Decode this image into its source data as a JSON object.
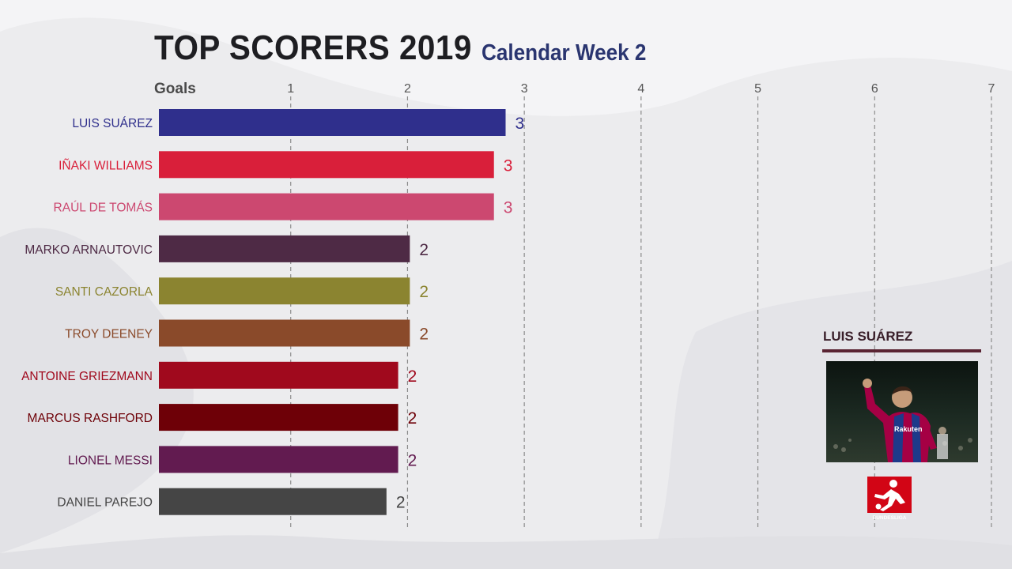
{
  "header": {
    "title": "TOP SCORERS 2019",
    "subtitle": "Calendar Week 2"
  },
  "chart_data": {
    "type": "bar",
    "orientation": "horizontal",
    "title": "TOP SCORERS 2019",
    "subtitle": "Calendar Week 2",
    "xlabel": "Goals",
    "xlim": [
      0,
      7
    ],
    "xticks": [
      1,
      2,
      3,
      4,
      5,
      6,
      7
    ],
    "grid": true,
    "categories": [
      "LUIS SUÁREZ",
      "IÑAKI WILLIAMS",
      "RAÚL DE TOMÁS",
      "MARKO ARNAUTOVIC",
      "SANTI CAZORLA",
      "TROY DEENEY",
      "ANTOINE GRIEZMANN",
      "MARCUS RASHFORD",
      "LIONEL MESSI",
      "DANIEL PAREJO"
    ],
    "values": [
      2.84,
      2.74,
      2.74,
      2.02,
      2.02,
      2.02,
      1.92,
      1.92,
      1.92,
      1.82
    ],
    "value_labels": [
      "3",
      "3",
      "3",
      "2",
      "2",
      "2",
      "2",
      "2",
      "2",
      "2"
    ],
    "colors": [
      "#2f2f8c",
      "#d91f3a",
      "#cc4870",
      "#4e2a45",
      "#8b8430",
      "#8a4a2a",
      "#a0091d",
      "#6e0007",
      "#621b50",
      "#454545"
    ],
    "label_colors": [
      "#2f2f8c",
      "#d91f3a",
      "#cc4870",
      "#4e2a45",
      "#8b8430",
      "#8a4a2a",
      "#a0091d",
      "#6e0007",
      "#621b50",
      "#454545"
    ]
  },
  "player_card": {
    "name": "LUIS SUÁREZ",
    "photo": "player-photo",
    "jersey_text": "Rakuten"
  },
  "brand": {
    "logo": "bundesliga-logo-icon",
    "name": "BUNDESLIGA",
    "color": "#d20515"
  }
}
